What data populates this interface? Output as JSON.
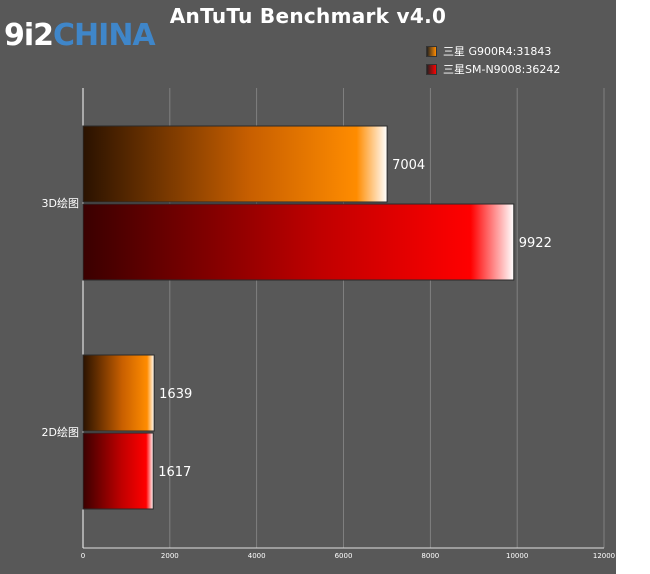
{
  "watermark": {
    "part1": "9i2",
    "part2": "CHINA"
  },
  "chart_data": {
    "type": "bar",
    "orientation": "horizontal",
    "title": "AnTuTu Benchmark v4.0",
    "xlabel": "",
    "ylabel": "",
    "categories": [
      "3D绘图",
      "2D绘图"
    ],
    "series": [
      {
        "name": "三星 G900R4:31843",
        "values": [
          7004,
          1639
        ],
        "color": "#ff8c00"
      },
      {
        "name": "三星SM-N9008:36242",
        "values": [
          9922,
          1617
        ],
        "color": "#ff0000"
      }
    ],
    "xlim": [
      0,
      12000
    ],
    "xticks": [
      0,
      2000,
      4000,
      6000,
      8000,
      10000,
      12000
    ],
    "grid": true,
    "legend": "top-right"
  }
}
